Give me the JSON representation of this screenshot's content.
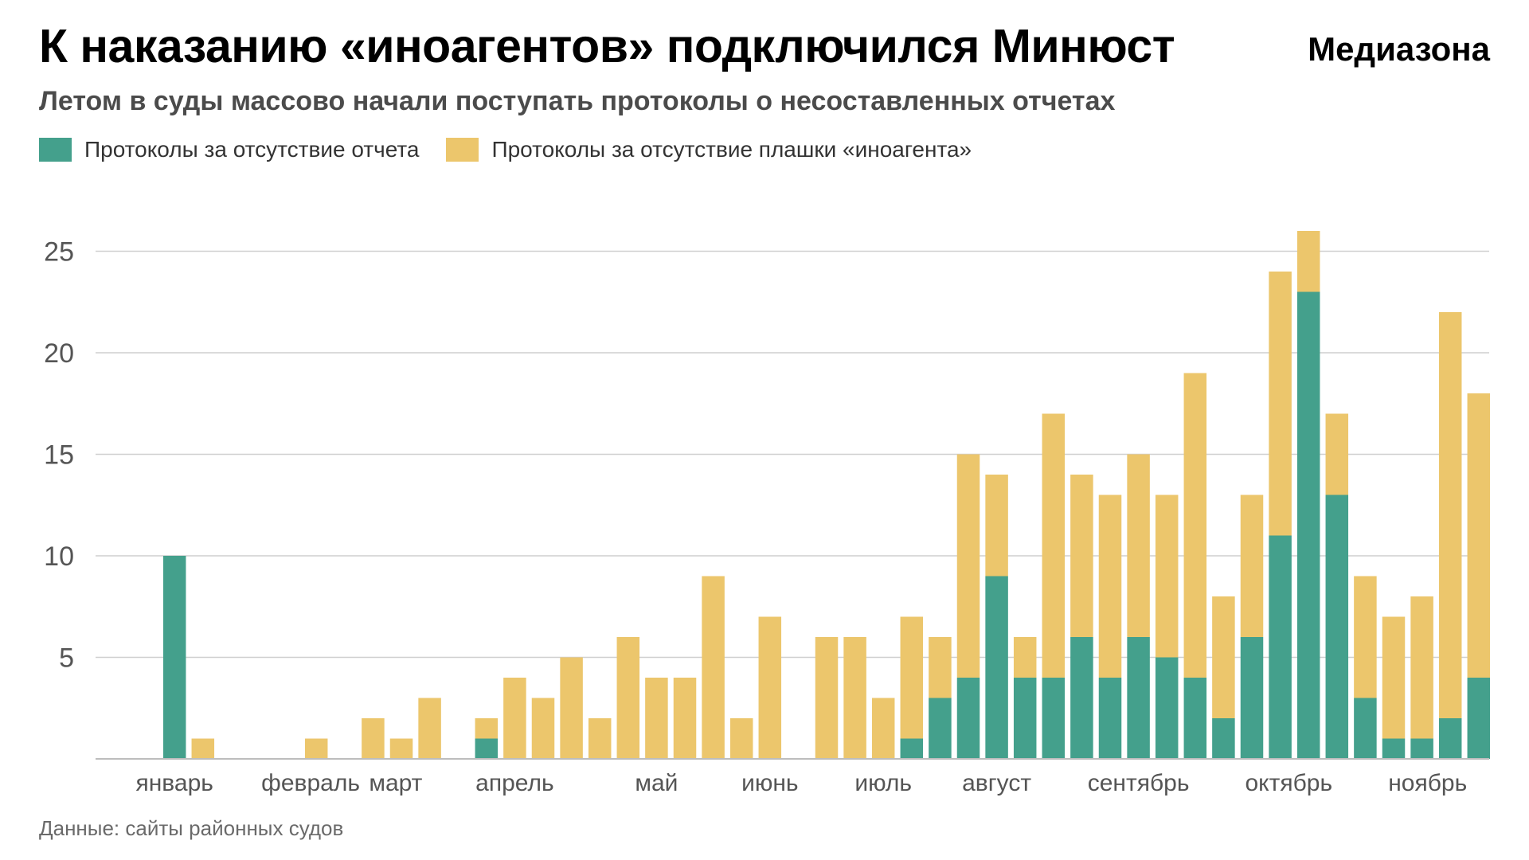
{
  "header": {
    "title": "К наказанию «иноагентов» подключился Минюст",
    "brand": "Медиазона",
    "subtitle": "Летом в суды массово начали поступать протоколы о несоставленных отчетах"
  },
  "footer": {
    "source": "Данные: сайты районных судов"
  },
  "chart_data": {
    "type": "bar",
    "stacked": true,
    "title": "К наказанию «иноагентов» подключился Минюст",
    "subtitle": "Летом в суды массово начали поступать протоколы о несоставленных отчетах",
    "xlabel": "",
    "ylabel": "",
    "ylim": [
      0,
      27
    ],
    "yticks": [
      5,
      10,
      15,
      20,
      25
    ],
    "grid": true,
    "legend_position": "top-left",
    "month_labels": [
      {
        "label": "январь",
        "week": 2
      },
      {
        "label": "февраль",
        "week": 6.8
      },
      {
        "label": "март",
        "week": 9.8
      },
      {
        "label": "апрель",
        "week": 14
      },
      {
        "label": "май",
        "week": 19
      },
      {
        "label": "июнь",
        "week": 23
      },
      {
        "label": "июль",
        "week": 27
      },
      {
        "label": "август",
        "week": 31
      },
      {
        "label": "сентябрь",
        "week": 36
      },
      {
        "label": "октябрь",
        "week": 41.3
      },
      {
        "label": "ноябрь",
        "week": 46.2
      }
    ],
    "series": [
      {
        "name": "Протоколы за отсутствие отчета",
        "color": "#44a08c",
        "values": [
          0,
          0,
          10,
          0,
          0,
          0,
          0,
          0,
          0,
          0,
          0,
          0,
          0,
          1,
          0,
          0,
          0,
          0,
          0,
          0,
          0,
          0,
          0,
          0,
          0,
          0,
          0,
          0,
          1,
          3,
          4,
          9,
          4,
          4,
          6,
          4,
          6,
          5,
          4,
          2,
          6,
          11,
          23,
          13,
          3,
          1,
          1,
          2,
          4
        ]
      },
      {
        "name": "Протоколы за отсутствие плашки «иноагента»",
        "color": "#ecc66c",
        "values": [
          0,
          0,
          0,
          1,
          0,
          0,
          0,
          1,
          0,
          2,
          1,
          3,
          0,
          1,
          4,
          3,
          5,
          2,
          6,
          4,
          4,
          9,
          2,
          7,
          0,
          6,
          6,
          3,
          6,
          3,
          11,
          5,
          2,
          13,
          8,
          9,
          9,
          8,
          15,
          6,
          7,
          13,
          3,
          4,
          6,
          6,
          7,
          20,
          14
        ]
      }
    ]
  }
}
